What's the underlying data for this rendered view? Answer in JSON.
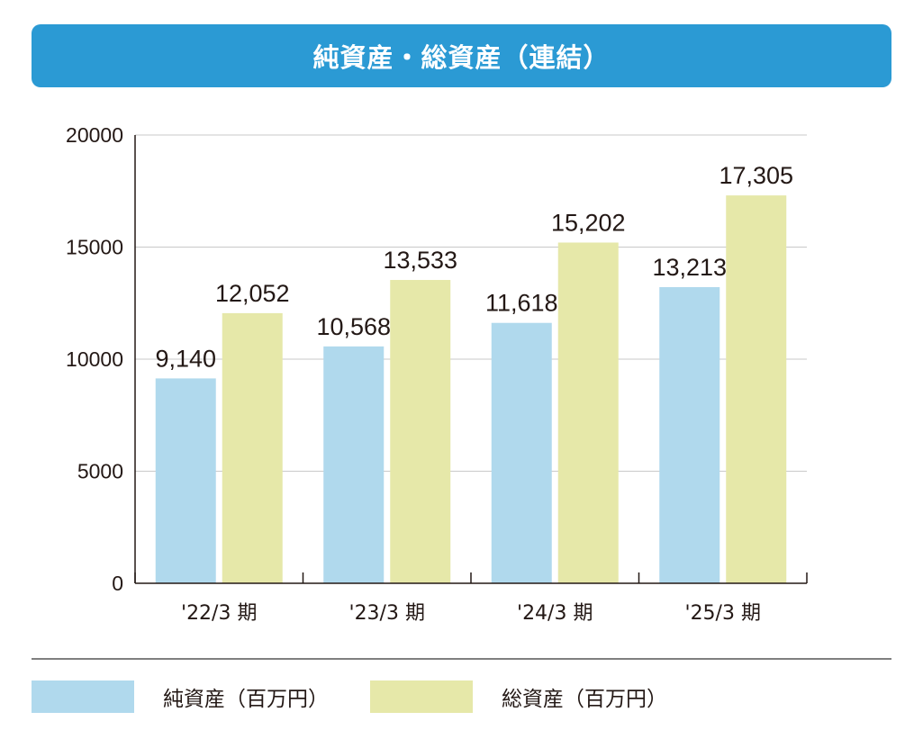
{
  "title": "純資産・総資産（連結）",
  "chart_data": {
    "type": "bar",
    "categories": [
      "'22/3 期",
      "'23/3 期",
      "'24/3 期",
      "'25/3 期"
    ],
    "series": [
      {
        "name": "純資産（百万円）",
        "color": "#b0d9ed",
        "values": [
          9140,
          10568,
          11618,
          13213
        ],
        "labels": [
          "9,140",
          "10,568",
          "11,618",
          "13,213"
        ]
      },
      {
        "name": "総資産（百万円）",
        "color": "#e6e8a9",
        "values": [
          12052,
          13533,
          15202,
          17305
        ],
        "labels": [
          "12,052",
          "13,533",
          "15,202",
          "17,305"
        ]
      }
    ],
    "yticks": [
      0,
      5000,
      10000,
      15000,
      20000
    ],
    "ylim": [
      0,
      20000
    ],
    "grid": true,
    "legend": "bottom"
  }
}
